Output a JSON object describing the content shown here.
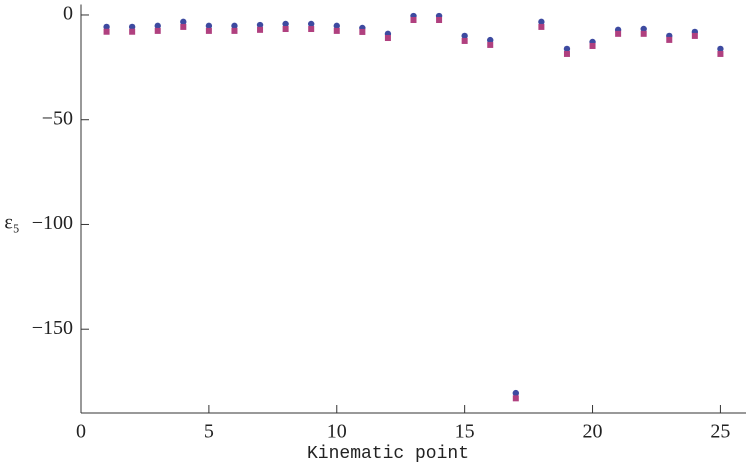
{
  "chart_data": {
    "type": "scatter",
    "x_label": "Kinematic point",
    "y_label": "ε₅",
    "xlim": [
      0,
      26
    ],
    "xticks": [
      0,
      5,
      10,
      15,
      20,
      25
    ],
    "ylim": [
      -190,
      5
    ],
    "yticks": [
      0,
      {
        "value": -50,
        "label": "−50"
      },
      {
        "value": -100,
        "label": "−100"
      },
      {
        "value": -150,
        "label": "−150"
      }
    ],
    "x": [
      1,
      2,
      3,
      4,
      5,
      6,
      7,
      8,
      9,
      10,
      11,
      12,
      13,
      14,
      15,
      16,
      17,
      18,
      19,
      20,
      21,
      22,
      23,
      24,
      25
    ],
    "series": [
      {
        "color": "#3d4aa0",
        "marker": "circle",
        "values": [
          -5.7,
          -5.7,
          -5.2,
          -3.3,
          -5.2,
          -5.2,
          -4.8,
          -4.3,
          -4.3,
          -5.2,
          -6.2,
          -9,
          -0.5,
          -0.5,
          -10,
          -12,
          -180.5,
          -3.3,
          -16.2,
          -12.9,
          -7.1,
          -6.7,
          -10,
          -8.1,
          -16.2
        ]
      },
      {
        "color": "#b0407f",
        "marker": "square",
        "values": [
          -8,
          -8,
          -7.6,
          -5.7,
          -7.6,
          -7.6,
          -7.1,
          -6.7,
          -6.7,
          -7.6,
          -8.1,
          -11,
          -2.4,
          -2.4,
          -12.4,
          -14.3,
          -183,
          -5.7,
          -18.6,
          -14.8,
          -9,
          -9,
          -11.9,
          -10,
          -18.6
        ]
      }
    ]
  }
}
